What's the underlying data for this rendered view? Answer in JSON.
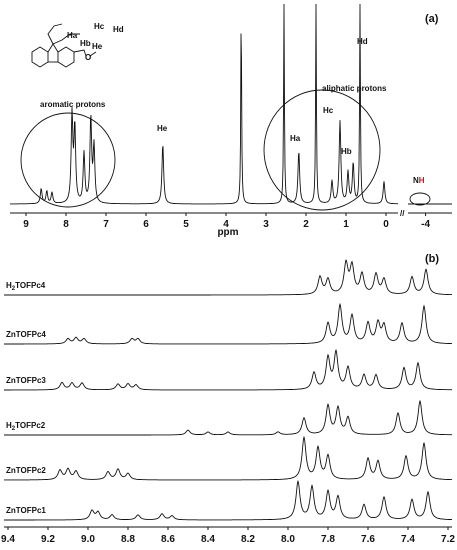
{
  "chart_data": [
    {
      "type": "line",
      "panel_label": "(a)",
      "xlabel": "ppm",
      "x_ticks": [
        "9",
        "8",
        "7",
        "6",
        "5",
        "4",
        "3",
        "2",
        "1",
        "0",
        "-4"
      ],
      "xlim": [
        9.4,
        -4.6
      ],
      "axis_break": [
        0.15,
        -3.6
      ],
      "annotations": {
        "aromatic": "aromatic protons",
        "aliphatic": "aliphatic protons",
        "He": "He",
        "Ha": "Ha",
        "Hc": "Hc",
        "Hb": "Hb",
        "Hd": "Hd",
        "NH_N": "N",
        "NH_H": "H"
      },
      "structure_labels": {
        "Hc": "Hc",
        "Ha": "Ha",
        "Hd": "Hd",
        "Hb": "Hb",
        "He": "He",
        "O": "O"
      },
      "peaks": [
        {
          "x": 8.62,
          "h": 0.12
        },
        {
          "x": 8.48,
          "h": 0.1
        },
        {
          "x": 8.35,
          "h": 0.09
        },
        {
          "x": 7.85,
          "h": 0.7
        },
        {
          "x": 7.78,
          "h": 0.6
        },
        {
          "x": 7.55,
          "h": 0.4
        },
        {
          "x": 7.38,
          "h": 0.68
        },
        {
          "x": 7.3,
          "h": 0.45
        },
        {
          "x": 5.58,
          "h": 0.48
        },
        {
          "x": 3.62,
          "h": 1.6
        },
        {
          "x": 2.55,
          "h": 1.6
        },
        {
          "x": 2.18,
          "h": 0.42
        },
        {
          "x": 1.75,
          "h": 1.6
        },
        {
          "x": 1.35,
          "h": 0.18
        },
        {
          "x": 1.15,
          "h": 0.66
        },
        {
          "x": 0.95,
          "h": 0.25
        },
        {
          "x": 0.82,
          "h": 0.32
        },
        {
          "x": 0.65,
          "h": 1.6
        },
        {
          "x": 0.05,
          "h": 0.18
        }
      ]
    },
    {
      "type": "line",
      "panel_label": "(b)",
      "xlim": [
        9.42,
        7.18
      ],
      "x_ticks": [
        "9.4",
        "9.2",
        "9.0",
        "8.8",
        "8.6",
        "8.4",
        "8.2",
        "8.0",
        "7.8",
        "7.6",
        "7.4",
        "7.2"
      ],
      "series": [
        {
          "name": "H2TOFPc4",
          "name_main": "H",
          "name_sub": "2",
          "name_rest": "TOFPc4",
          "peaks": [
            [
              7.84,
              0.35
            ],
            [
              7.8,
              0.3
            ],
            [
              7.71,
              0.6
            ],
            [
              7.68,
              0.55
            ],
            [
              7.63,
              0.4
            ],
            [
              7.56,
              0.4
            ],
            [
              7.52,
              0.3
            ],
            [
              7.38,
              0.35
            ],
            [
              7.31,
              0.5
            ]
          ]
        },
        {
          "name": "ZnTOFPc4",
          "peaks": [
            [
              9.1,
              0.1
            ],
            [
              9.06,
              0.12
            ],
            [
              9.02,
              0.1
            ],
            [
              8.78,
              0.1
            ],
            [
              8.75,
              0.1
            ],
            [
              7.8,
              0.4
            ],
            [
              7.74,
              0.75
            ],
            [
              7.68,
              0.55
            ],
            [
              7.6,
              0.4
            ],
            [
              7.55,
              0.4
            ],
            [
              7.52,
              0.35
            ],
            [
              7.43,
              0.4
            ],
            [
              7.32,
              0.75
            ]
          ]
        },
        {
          "name": "ZnTOFPc3",
          "peaks": [
            [
              9.13,
              0.15
            ],
            [
              9.08,
              0.14
            ],
            [
              9.03,
              0.14
            ],
            [
              8.85,
              0.12
            ],
            [
              8.8,
              0.12
            ],
            [
              8.76,
              0.1
            ],
            [
              7.87,
              0.35
            ],
            [
              7.8,
              0.65
            ],
            [
              7.76,
              0.75
            ],
            [
              7.7,
              0.45
            ],
            [
              7.62,
              0.3
            ],
            [
              7.56,
              0.3
            ],
            [
              7.42,
              0.45
            ],
            [
              7.35,
              0.55
            ]
          ]
        },
        {
          "name": "H2TOFPc2",
          "name_main": "H",
          "name_sub": "2",
          "name_rest": "TOFPc2",
          "peaks": [
            [
              8.5,
              0.1
            ],
            [
              8.4,
              0.06
            ],
            [
              8.3,
              0.06
            ],
            [
              8.05,
              0.06
            ],
            [
              7.92,
              0.35
            ],
            [
              7.8,
              0.6
            ],
            [
              7.75,
              0.55
            ],
            [
              7.7,
              0.35
            ],
            [
              7.45,
              0.45
            ],
            [
              7.34,
              0.7
            ]
          ]
        },
        {
          "name": "ZnTOFPc2",
          "peaks": [
            [
              9.14,
              0.18
            ],
            [
              9.1,
              0.2
            ],
            [
              9.06,
              0.16
            ],
            [
              8.9,
              0.15
            ],
            [
              8.85,
              0.2
            ],
            [
              8.8,
              0.12
            ],
            [
              7.92,
              0.8
            ],
            [
              7.85,
              0.6
            ],
            [
              7.8,
              0.45
            ],
            [
              7.6,
              0.4
            ],
            [
              7.55,
              0.35
            ],
            [
              7.41,
              0.45
            ],
            [
              7.32,
              0.7
            ]
          ]
        },
        {
          "name": "ZnTOFPc1",
          "peaks": [
            [
              8.98,
              0.18
            ],
            [
              8.95,
              0.15
            ],
            [
              8.88,
              0.1
            ],
            [
              8.75,
              0.1
            ],
            [
              8.63,
              0.12
            ],
            [
              8.58,
              0.08
            ],
            [
              7.95,
              0.75
            ],
            [
              7.88,
              0.65
            ],
            [
              7.8,
              0.55
            ],
            [
              7.75,
              0.45
            ],
            [
              7.62,
              0.3
            ],
            [
              7.52,
              0.45
            ],
            [
              7.38,
              0.4
            ],
            [
              7.3,
              0.55
            ]
          ]
        }
      ]
    }
  ]
}
